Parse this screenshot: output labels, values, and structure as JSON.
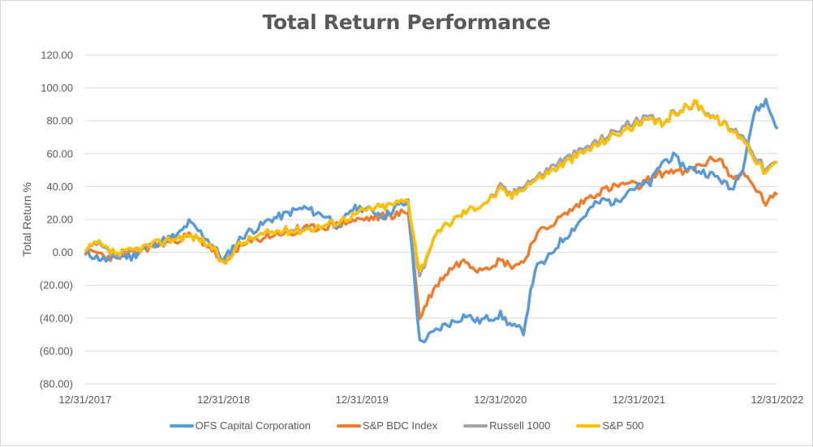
{
  "chart_data": {
    "type": "line",
    "title": "Total Return Performance",
    "xlabel": "",
    "ylabel": "Total Return %",
    "ylim": [
      -80,
      120
    ],
    "y_ticks": [
      "120.00",
      "100.00",
      "80.00",
      "60.00",
      "40.00",
      "20.00",
      "0.00",
      "(20.00)",
      "(40.00)",
      "(60.00)",
      "(80.00)"
    ],
    "y_tick_values": [
      120,
      100,
      80,
      60,
      40,
      20,
      0,
      -20,
      -40,
      -60,
      -80
    ],
    "x_ticks": [
      "12/31/2017",
      "12/31/2018",
      "12/31/2019",
      "12/31/2020",
      "12/31/2021",
      "12/31/2022"
    ],
    "grid": true,
    "legend_position": "bottom",
    "x_start": "12/31/2017",
    "x_end": "12/31/2022",
    "x_frequency": "monthly (approximate)",
    "series": [
      {
        "name": "OFS Capital Corporation",
        "color": "#5B9BD5",
        "values": [
          0,
          -3,
          -5,
          -2,
          -3,
          2,
          5,
          8,
          10,
          18,
          12,
          5,
          -5,
          5,
          12,
          15,
          20,
          22,
          25,
          27,
          24,
          22,
          15,
          26,
          27,
          25,
          22,
          28,
          30,
          -55,
          -50,
          -45,
          -42,
          -38,
          -42,
          -40,
          -38,
          -45,
          -48,
          -10,
          -5,
          5,
          12,
          20,
          28,
          32,
          30,
          38,
          40,
          42,
          55,
          58,
          52,
          50,
          48,
          45,
          38,
          52,
          85,
          92,
          75
        ]
      },
      {
        "name": "S&P BDC Index",
        "color": "#ED7D31",
        "values": [
          0,
          0,
          -3,
          -2,
          -1,
          2,
          4,
          6,
          8,
          10,
          7,
          2,
          -8,
          2,
          5,
          8,
          10,
          12,
          11,
          14,
          15,
          16,
          17,
          19,
          20,
          21,
          22,
          23,
          25,
          -40,
          -25,
          -15,
          -8,
          -5,
          -10,
          -8,
          -5,
          -8,
          -6,
          10,
          15,
          20,
          25,
          30,
          35,
          38,
          40,
          42,
          40,
          45,
          48,
          50,
          48,
          52,
          55,
          58,
          45,
          48,
          40,
          30,
          35
        ]
      },
      {
        "name": "Russell 1000",
        "color": "#A5A5A5",
        "values": [
          0,
          5,
          0,
          -2,
          0,
          3,
          5,
          7,
          9,
          10,
          8,
          3,
          -7,
          3,
          7,
          10,
          12,
          13,
          14,
          15,
          15,
          17,
          19,
          22,
          25,
          27,
          28,
          30,
          31,
          -15,
          5,
          15,
          20,
          25,
          28,
          32,
          40,
          35,
          42,
          45,
          50,
          55,
          58,
          62,
          66,
          70,
          74,
          78,
          80,
          82,
          78,
          85,
          88,
          90,
          85,
          80,
          75,
          72,
          60,
          50,
          55
        ]
      },
      {
        "name": "S&P 500",
        "color": "#FFC000",
        "values": [
          0,
          6,
          1,
          -1,
          1,
          3,
          5,
          7,
          9,
          10,
          8,
          3,
          -8,
          3,
          7,
          10,
          12,
          13,
          13,
          14,
          15,
          17,
          19,
          22,
          25,
          27,
          28,
          30,
          32,
          -12,
          5,
          15,
          20,
          25,
          28,
          32,
          38,
          34,
          40,
          44,
          48,
          52,
          56,
          60,
          64,
          68,
          72,
          75,
          78,
          80,
          78,
          84,
          88,
          91,
          84,
          80,
          74,
          70,
          58,
          48,
          55
        ]
      }
    ]
  },
  "legend": {
    "items": [
      {
        "label": "OFS Capital Corporation",
        "color": "#5B9BD5"
      },
      {
        "label": "S&P BDC Index",
        "color": "#ED7D31"
      },
      {
        "label": "Russell 1000",
        "color": "#A5A5A5"
      },
      {
        "label": "S&P 500",
        "color": "#FFC000"
      }
    ]
  }
}
